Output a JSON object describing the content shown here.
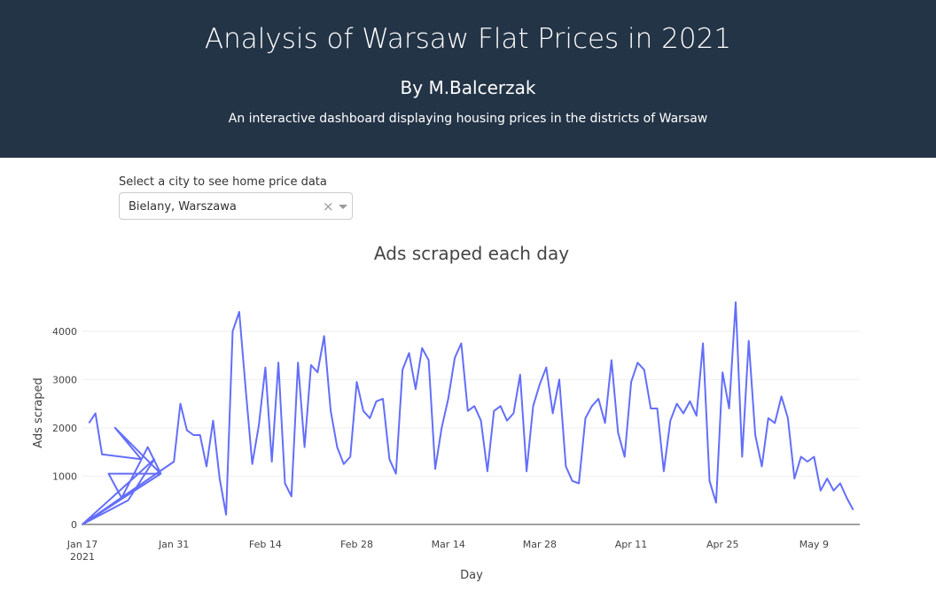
{
  "header": {
    "title": "Analysis of Warsaw Flat Prices in 2021",
    "author": "By M.Balcerzak",
    "description": "An interactive dashboard displaying housing prices in the districts of Warsaw"
  },
  "dropdown": {
    "label": "Select a city to see home price data",
    "selected": "Bielany, Warszawa",
    "clear": "×"
  },
  "chart_data": {
    "type": "line",
    "title": "Ads scraped each day",
    "xlabel": "Day",
    "ylabel": "Ads scraped",
    "color": "#636efa",
    "grid": true,
    "x": [
      "2021-01-18",
      "2021-01-19",
      "2021-01-20",
      "2021-01-26",
      "2021-01-22",
      "2021-01-29",
      "2021-01-21",
      "2021-01-23",
      "2021-01-27",
      "2021-01-29",
      "2021-01-17",
      "2021-01-24",
      "2021-01-28",
      "2021-01-17",
      "2021-01-31",
      "2021-02-01",
      "2021-02-02",
      "2021-02-03",
      "2021-02-04",
      "2021-02-05",
      "2021-02-06",
      "2021-02-07",
      "2021-02-08",
      "2021-02-09",
      "2021-02-10",
      "2021-02-11",
      "2021-02-12",
      "2021-02-13",
      "2021-02-14",
      "2021-02-15",
      "2021-02-16",
      "2021-02-17",
      "2021-02-18",
      "2021-02-19",
      "2021-02-20",
      "2021-02-21",
      "2021-02-22",
      "2021-02-23",
      "2021-02-24",
      "2021-02-25",
      "2021-02-26",
      "2021-02-27",
      "2021-02-28",
      "2021-03-01",
      "2021-03-02",
      "2021-03-03",
      "2021-03-04",
      "2021-03-05",
      "2021-03-06",
      "2021-03-07",
      "2021-03-08",
      "2021-03-09",
      "2021-03-10",
      "2021-03-11",
      "2021-03-12",
      "2021-03-13",
      "2021-03-14",
      "2021-03-15",
      "2021-03-16",
      "2021-03-17",
      "2021-03-18",
      "2021-03-19",
      "2021-03-20",
      "2021-03-21",
      "2021-03-22",
      "2021-03-23",
      "2021-03-24",
      "2021-03-25",
      "2021-03-26",
      "2021-03-27",
      "2021-03-28",
      "2021-03-29",
      "2021-03-30",
      "2021-03-31",
      "2021-04-01",
      "2021-04-02",
      "2021-04-03",
      "2021-04-04",
      "2021-04-05",
      "2021-04-06",
      "2021-04-07",
      "2021-04-08",
      "2021-04-09",
      "2021-04-10",
      "2021-04-11",
      "2021-04-12",
      "2021-04-13",
      "2021-04-14",
      "2021-04-15",
      "2021-04-16",
      "2021-04-17",
      "2021-04-18",
      "2021-04-19",
      "2021-04-20",
      "2021-04-21",
      "2021-04-22",
      "2021-04-23",
      "2021-04-24",
      "2021-04-25",
      "2021-04-26",
      "2021-04-27",
      "2021-04-28",
      "2021-04-29",
      "2021-04-30",
      "2021-05-01",
      "2021-05-02",
      "2021-05-03",
      "2021-05-04",
      "2021-05-05",
      "2021-05-06",
      "2021-05-07",
      "2021-05-08",
      "2021-05-09",
      "2021-05-10",
      "2021-05-11",
      "2021-05-12",
      "2021-05-13",
      "2021-05-14",
      "2021-05-15"
    ],
    "values": [
      2100,
      2300,
      1450,
      1350,
      2000,
      1050,
      1050,
      550,
      1600,
      1050,
      0,
      500,
      1350,
      0,
      1300,
      2500,
      1950,
      1850,
      1850,
      1200,
      2150,
      950,
      200,
      4000,
      4400,
      2800,
      1250,
      2050,
      3250,
      1300,
      3350,
      850,
      580,
      3350,
      1600,
      3300,
      3150,
      3900,
      2350,
      1600,
      1250,
      1400,
      2950,
      2350,
      2200,
      2550,
      2600,
      1350,
      1050,
      3200,
      3550,
      2800,
      3650,
      3400,
      1150,
      2000,
      2600,
      3450,
      3750,
      2350,
      2450,
      2150,
      1100,
      2350,
      2450,
      2150,
      2300,
      3100,
      1100,
      2450,
      2900,
      3250,
      2300,
      3000,
      1200,
      900,
      850,
      2200,
      2450,
      2600,
      2100,
      3400,
      1900,
      1400,
      2950,
      3350,
      3200,
      2400,
      2400,
      1100,
      2150,
      2500,
      2300,
      2550,
      2250,
      3750,
      900,
      450,
      3150,
      2400,
      4600,
      1400,
      3800,
      1850,
      1200,
      2200,
      2100,
      2650,
      2200,
      950,
      1400,
      1300,
      1400,
      700,
      950,
      700,
      850,
      550,
      300
    ],
    "xlim": [
      "2021-01-17",
      "2021-05-16"
    ],
    "xticks": [
      {
        "value": "2021-01-17",
        "label": "Jan 17\n2021"
      },
      {
        "value": "2021-01-31",
        "label": "Jan 31"
      },
      {
        "value": "2021-02-14",
        "label": "Feb 14"
      },
      {
        "value": "2021-02-28",
        "label": "Feb 28"
      },
      {
        "value": "2021-03-14",
        "label": "Mar 14"
      },
      {
        "value": "2021-03-28",
        "label": "Mar 28"
      },
      {
        "value": "2021-04-11",
        "label": "Apr 11"
      },
      {
        "value": "2021-04-25",
        "label": "Apr 25"
      },
      {
        "value": "2021-05-09",
        "label": "May 9"
      }
    ],
    "ylim": [
      -150,
      4700
    ],
    "yticks": [
      0,
      1000,
      2000,
      3000,
      4000
    ]
  }
}
